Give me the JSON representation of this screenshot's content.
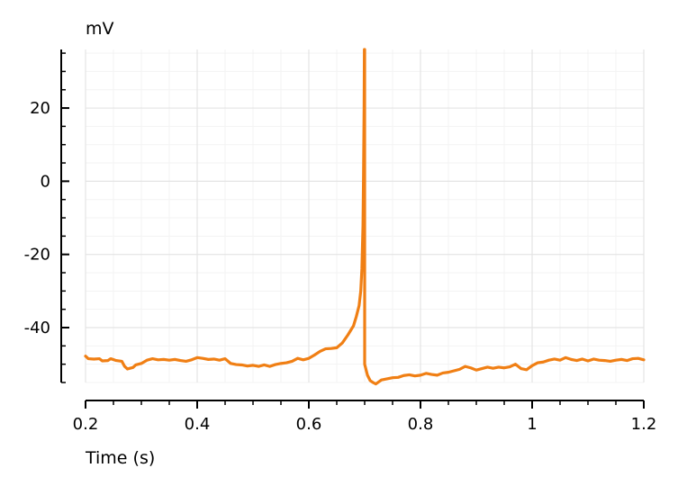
{
  "chart_data": {
    "type": "line",
    "xlabel": "Time (s)",
    "ylabel": "mV",
    "xlim": [
      0.2,
      1.2
    ],
    "ylim": [
      -55,
      36
    ],
    "grid": true,
    "x_ticks": [
      0.2,
      0.4,
      0.6,
      0.8,
      1.0,
      1.2
    ],
    "x_tick_labels": [
      "0.2",
      "0.4",
      "0.6",
      "0.8",
      "1",
      "1.2"
    ],
    "y_ticks": [
      20,
      0,
      -20,
      -40
    ],
    "y_tick_labels": [
      "20",
      "0",
      "-20",
      "-40"
    ],
    "series": [
      {
        "color": "#f07f14",
        "points": [
          [
            0.2,
            -47.8
          ],
          [
            0.205,
            -48.5
          ],
          [
            0.215,
            -48.6
          ],
          [
            0.225,
            -48.5
          ],
          [
            0.23,
            -49.1
          ],
          [
            0.24,
            -49.0
          ],
          [
            0.245,
            -48.5
          ],
          [
            0.255,
            -49.0
          ],
          [
            0.265,
            -49.2
          ],
          [
            0.27,
            -50.6
          ],
          [
            0.275,
            -51.3
          ],
          [
            0.285,
            -50.9
          ],
          [
            0.29,
            -50.2
          ],
          [
            0.3,
            -49.8
          ],
          [
            0.31,
            -48.9
          ],
          [
            0.32,
            -48.5
          ],
          [
            0.33,
            -48.8
          ],
          [
            0.34,
            -48.7
          ],
          [
            0.35,
            -48.9
          ],
          [
            0.36,
            -48.7
          ],
          [
            0.37,
            -49.0
          ],
          [
            0.38,
            -49.2
          ],
          [
            0.39,
            -48.8
          ],
          [
            0.4,
            -48.2
          ],
          [
            0.41,
            -48.4
          ],
          [
            0.42,
            -48.7
          ],
          [
            0.43,
            -48.6
          ],
          [
            0.44,
            -48.9
          ],
          [
            0.45,
            -48.5
          ],
          [
            0.46,
            -49.8
          ],
          [
            0.47,
            -50.1
          ],
          [
            0.48,
            -50.2
          ],
          [
            0.49,
            -50.5
          ],
          [
            0.5,
            -50.3
          ],
          [
            0.51,
            -50.6
          ],
          [
            0.52,
            -50.2
          ],
          [
            0.53,
            -50.6
          ],
          [
            0.54,
            -50.1
          ],
          [
            0.55,
            -49.8
          ],
          [
            0.56,
            -49.6
          ],
          [
            0.57,
            -49.2
          ],
          [
            0.58,
            -48.4
          ],
          [
            0.59,
            -48.8
          ],
          [
            0.6,
            -48.4
          ],
          [
            0.61,
            -47.5
          ],
          [
            0.62,
            -46.5
          ],
          [
            0.63,
            -45.8
          ],
          [
            0.64,
            -45.7
          ],
          [
            0.65,
            -45.5
          ],
          [
            0.66,
            -44.2
          ],
          [
            0.67,
            -42.0
          ],
          [
            0.68,
            -39.5
          ],
          [
            0.685,
            -37.0
          ],
          [
            0.69,
            -34.0
          ],
          [
            0.693,
            -30.0
          ],
          [
            0.695,
            -24.0
          ],
          [
            0.697,
            -12.0
          ],
          [
            0.698,
            2.0
          ],
          [
            0.699,
            20.0
          ],
          [
            0.6995,
            36.0
          ],
          [
            0.7,
            36.0
          ],
          [
            0.7,
            25.0
          ],
          [
            0.7,
            0.0
          ],
          [
            0.7,
            -30.0
          ],
          [
            0.7,
            -50.0
          ],
          [
            0.705,
            -53.0
          ],
          [
            0.71,
            -54.5
          ],
          [
            0.715,
            -55.0
          ],
          [
            0.72,
            -55.4
          ],
          [
            0.73,
            -54.3
          ],
          [
            0.74,
            -54.0
          ],
          [
            0.75,
            -53.7
          ],
          [
            0.76,
            -53.6
          ],
          [
            0.77,
            -53.1
          ],
          [
            0.78,
            -52.9
          ],
          [
            0.79,
            -53.2
          ],
          [
            0.8,
            -53.0
          ],
          [
            0.81,
            -52.5
          ],
          [
            0.82,
            -52.8
          ],
          [
            0.83,
            -53.0
          ],
          [
            0.84,
            -52.4
          ],
          [
            0.85,
            -52.2
          ],
          [
            0.86,
            -51.8
          ],
          [
            0.87,
            -51.4
          ],
          [
            0.88,
            -50.6
          ],
          [
            0.89,
            -51.0
          ],
          [
            0.9,
            -51.6
          ],
          [
            0.91,
            -51.2
          ],
          [
            0.92,
            -50.8
          ],
          [
            0.93,
            -51.1
          ],
          [
            0.94,
            -50.8
          ],
          [
            0.95,
            -51.0
          ],
          [
            0.96,
            -50.7
          ],
          [
            0.97,
            -50.0
          ],
          [
            0.98,
            -51.2
          ],
          [
            0.99,
            -51.5
          ],
          [
            1.0,
            -50.4
          ],
          [
            1.01,
            -49.6
          ],
          [
            1.02,
            -49.4
          ],
          [
            1.03,
            -48.9
          ],
          [
            1.04,
            -48.6
          ],
          [
            1.05,
            -48.9
          ],
          [
            1.06,
            -48.2
          ],
          [
            1.07,
            -48.7
          ],
          [
            1.08,
            -49.0
          ],
          [
            1.09,
            -48.6
          ],
          [
            1.1,
            -49.1
          ],
          [
            1.11,
            -48.6
          ],
          [
            1.12,
            -48.9
          ],
          [
            1.13,
            -49.0
          ],
          [
            1.14,
            -49.2
          ],
          [
            1.15,
            -48.9
          ],
          [
            1.16,
            -48.7
          ],
          [
            1.17,
            -49.0
          ],
          [
            1.18,
            -48.5
          ],
          [
            1.19,
            -48.4
          ],
          [
            1.2,
            -48.8
          ]
        ]
      }
    ]
  }
}
